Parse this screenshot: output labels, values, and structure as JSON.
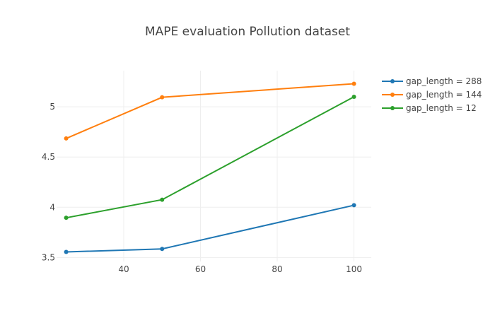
{
  "chart_data": {
    "type": "line",
    "title": "MAPE evaluation Pollution dataset",
    "xlabel": "",
    "ylabel": "",
    "x_ticks": [
      40,
      60,
      80,
      100
    ],
    "y_ticks": [
      "3.5",
      "4",
      "4.5",
      "5"
    ],
    "xlim": [
      22.5,
      104.5
    ],
    "ylim": [
      3.46,
      5.36
    ],
    "grid": true,
    "legend_position": "top-right",
    "series": [
      {
        "name": "gap_length = 288",
        "color": "#1f77b4",
        "x": [
          25,
          50,
          100
        ],
        "y": [
          3.555,
          3.585,
          4.02
        ]
      },
      {
        "name": "gap_length = 144",
        "color": "#ff7f0e",
        "x": [
          25,
          50,
          100
        ],
        "y": [
          4.685,
          5.095,
          5.23
        ]
      },
      {
        "name": "gap_length = 12",
        "color": "#2ca02c",
        "x": [
          25,
          50,
          100
        ],
        "y": [
          3.895,
          4.075,
          5.1
        ]
      }
    ]
  }
}
